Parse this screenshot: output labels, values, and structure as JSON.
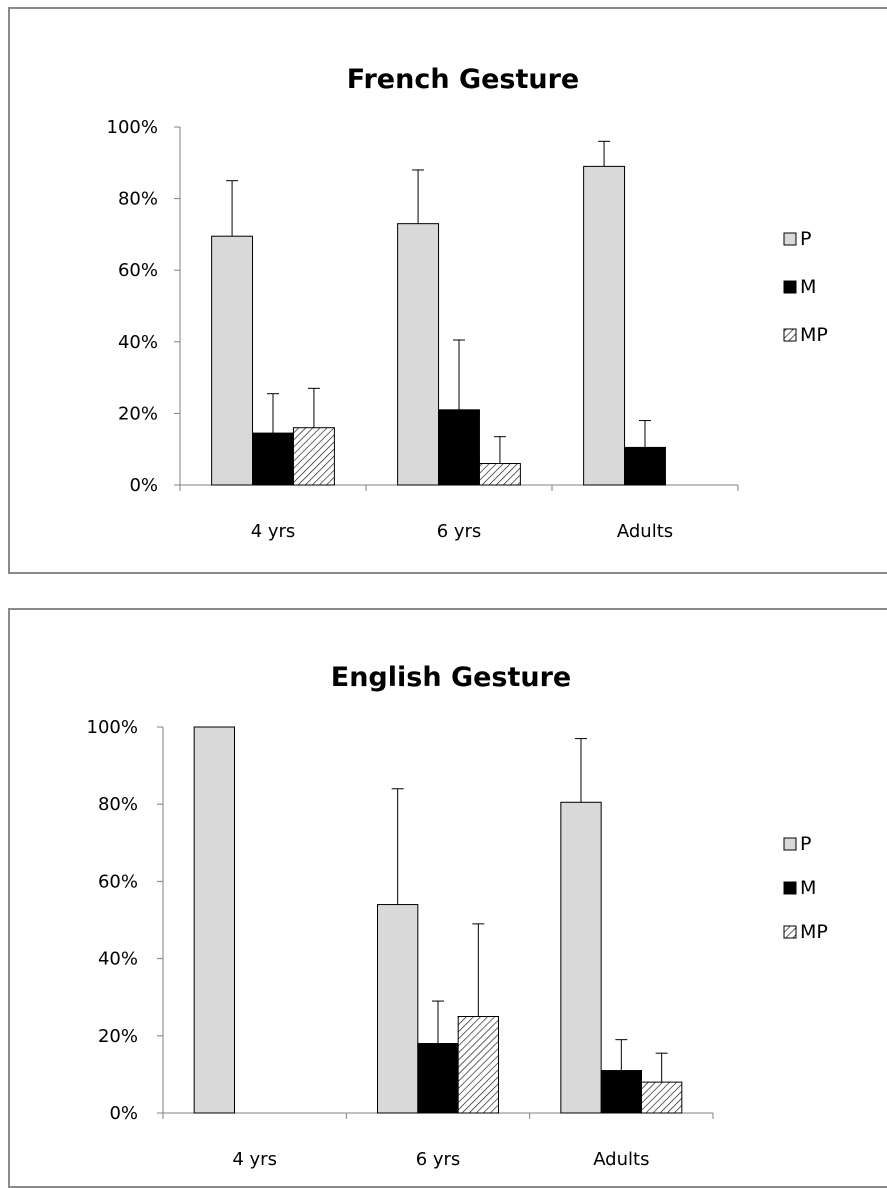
{
  "chart_data": [
    {
      "type": "bar",
      "title": "French Gesture",
      "categories": [
        "4 yrs",
        "6  yrs",
        "Adults"
      ],
      "ylim": [
        0,
        100
      ],
      "yticks": [
        "0%",
        "20%",
        "40%",
        "60%",
        "80%",
        "100%"
      ],
      "y_tick_values": [
        0,
        20,
        40,
        60,
        80,
        100
      ],
      "legend_position": "right",
      "series": [
        {
          "name": "P",
          "fill": "#d9d9d9",
          "pattern": "solid",
          "values": [
            69.5,
            73,
            89
          ],
          "errors": [
            15.5,
            15,
            7
          ]
        },
        {
          "name": "M",
          "fill": "#000000",
          "pattern": "solid",
          "values": [
            14.5,
            21,
            10.5
          ],
          "errors": [
            11,
            19.5,
            7.5
          ]
        },
        {
          "name": "MP",
          "fill": "#ffffff",
          "pattern": "hatch",
          "values": [
            16,
            6,
            0
          ],
          "errors": [
            11,
            7.5,
            0
          ]
        }
      ]
    },
    {
      "type": "bar",
      "title": "English Gesture",
      "categories": [
        "4 yrs",
        "6  yrs",
        "Adults"
      ],
      "ylim": [
        0,
        100
      ],
      "yticks": [
        "0%",
        "20%",
        "40%",
        "60%",
        "80%",
        "100%"
      ],
      "y_tick_values": [
        0,
        20,
        40,
        60,
        80,
        100
      ],
      "legend_position": "right",
      "series": [
        {
          "name": "P",
          "fill": "#d9d9d9",
          "pattern": "solid",
          "values": [
            100,
            54,
            80.5
          ],
          "errors": [
            0,
            30,
            16.5
          ]
        },
        {
          "name": "M",
          "fill": "#000000",
          "pattern": "solid",
          "values": [
            0,
            18,
            11
          ],
          "errors": [
            0,
            11,
            8
          ]
        },
        {
          "name": "MP",
          "fill": "#ffffff",
          "pattern": "hatch",
          "values": [
            0,
            25,
            8
          ],
          "errors": [
            0,
            24,
            7.5
          ]
        }
      ]
    }
  ]
}
